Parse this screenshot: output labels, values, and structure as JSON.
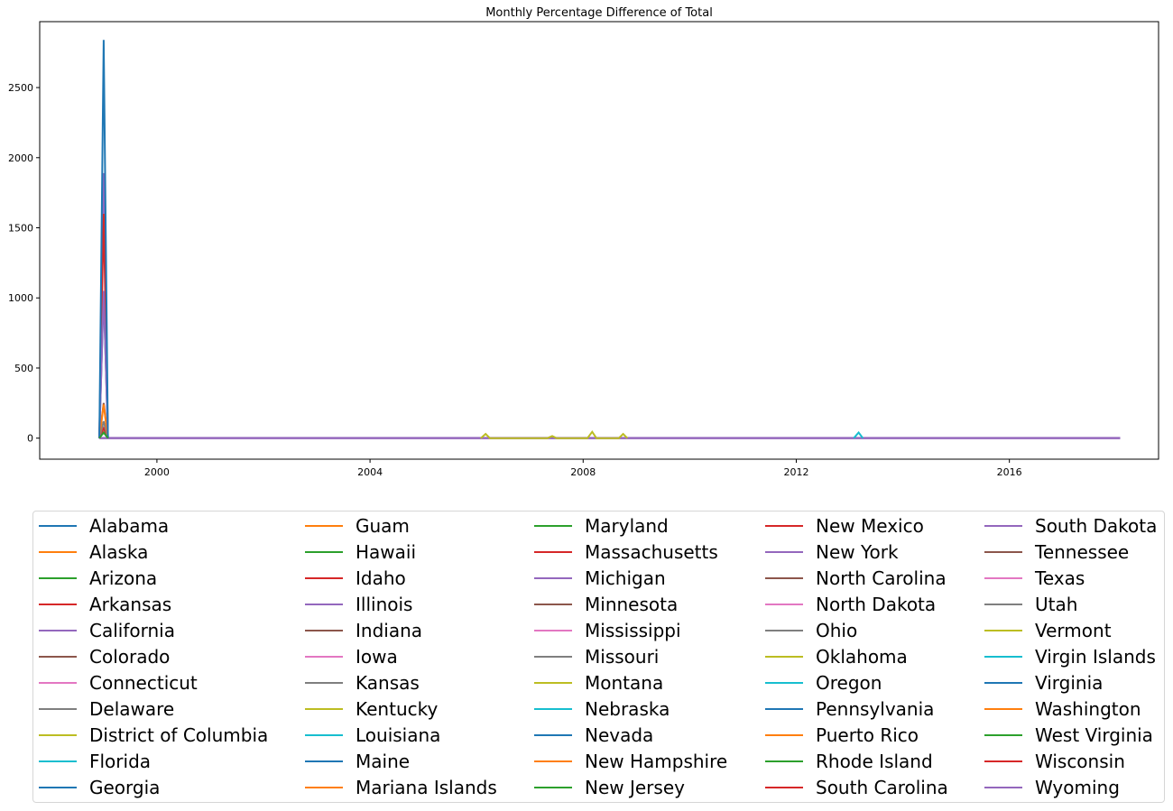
{
  "chart_data": {
    "type": "line",
    "title": "Monthly Percentage Difference of Total",
    "xlabel": "",
    "ylabel": "",
    "xlim": [
      1997.8,
      2018.8
    ],
    "ylim": [
      -150,
      2970
    ],
    "x_ticks": [
      "2000",
      "2004",
      "2008",
      "2012",
      "2016"
    ],
    "y_ticks": [
      "0",
      "500",
      "1000",
      "1500",
      "2000",
      "2500"
    ],
    "grid": false,
    "legend_location": "bottom",
    "legend_columns": 5,
    "baseline": {
      "x_start": 1998.92,
      "x_end": 2018.08,
      "y": 0
    },
    "series": [
      {
        "name": "Alabama",
        "color": "#1f77b4",
        "points": []
      },
      {
        "name": "Alaska",
        "color": "#ff7f0e",
        "points": []
      },
      {
        "name": "Arizona",
        "color": "#2ca02c",
        "points": []
      },
      {
        "name": "Arkansas",
        "color": "#d62728",
        "points": [
          [
            1998.92,
            0
          ],
          [
            1999.0,
            70
          ],
          [
            1999.08,
            0
          ]
        ]
      },
      {
        "name": "California",
        "color": "#9467bd",
        "points": [
          [
            1998.92,
            0
          ],
          [
            1999.0,
            1890
          ],
          [
            1999.08,
            0
          ]
        ]
      },
      {
        "name": "Colorado",
        "color": "#8c564b",
        "points": [
          [
            1998.92,
            0
          ],
          [
            1999.0,
            250
          ],
          [
            1999.08,
            0
          ]
        ]
      },
      {
        "name": "Connecticut",
        "color": "#e377c2",
        "points": []
      },
      {
        "name": "Delaware",
        "color": "#7f7f7f",
        "points": [
          [
            1998.92,
            0
          ],
          [
            1999.0,
            120
          ],
          [
            1999.08,
            0
          ]
        ]
      },
      {
        "name": "District of Columbia",
        "color": "#bcbd22",
        "points": []
      },
      {
        "name": "Florida",
        "color": "#17becf",
        "points": []
      },
      {
        "name": "Georgia",
        "color": "#1f77b4",
        "points": [
          [
            1998.92,
            0
          ],
          [
            1999.0,
            1050
          ],
          [
            1999.08,
            0
          ]
        ]
      },
      {
        "name": "Guam",
        "color": "#ff7f0e",
        "points": [
          [
            1998.92,
            0
          ],
          [
            1999.0,
            240
          ],
          [
            1999.08,
            0
          ]
        ]
      },
      {
        "name": "Hawaii",
        "color": "#2ca02c",
        "points": []
      },
      {
        "name": "Idaho",
        "color": "#d62728",
        "points": [
          [
            1998.92,
            0
          ],
          [
            1999.0,
            1600
          ],
          [
            1999.08,
            0
          ]
        ]
      },
      {
        "name": "Illinois",
        "color": "#9467bd",
        "points": [
          [
            1998.92,
            0
          ],
          [
            1999.0,
            1050
          ],
          [
            1999.08,
            0
          ]
        ]
      },
      {
        "name": "Indiana",
        "color": "#8c564b",
        "points": []
      },
      {
        "name": "Iowa",
        "color": "#e377c2",
        "points": []
      },
      {
        "name": "Kansas",
        "color": "#7f7f7f",
        "points": []
      },
      {
        "name": "Kentucky",
        "color": "#bcbd22",
        "points": [
          [
            2006.08,
            0
          ],
          [
            2006.17,
            30
          ],
          [
            2006.25,
            0
          ],
          [
            2007.33,
            0
          ],
          [
            2007.42,
            15
          ],
          [
            2007.5,
            0
          ],
          [
            2008.08,
            0
          ],
          [
            2008.17,
            45
          ],
          [
            2008.25,
            0
          ],
          [
            2008.67,
            0
          ],
          [
            2008.75,
            30
          ],
          [
            2008.83,
            0
          ]
        ]
      },
      {
        "name": "Louisiana",
        "color": "#17becf",
        "points": [
          [
            2013.08,
            0
          ],
          [
            2013.17,
            40
          ],
          [
            2013.25,
            0
          ]
        ]
      },
      {
        "name": "Maine",
        "color": "#1f77b4",
        "points": [
          [
            1998.92,
            0
          ],
          [
            1999.0,
            2840
          ],
          [
            1999.08,
            0
          ]
        ]
      },
      {
        "name": "Mariana Islands",
        "color": "#ff7f0e",
        "points": []
      },
      {
        "name": "Maryland",
        "color": "#2ca02c",
        "points": [
          [
            1998.92,
            0
          ],
          [
            1999.0,
            40
          ],
          [
            1999.08,
            0
          ]
        ]
      },
      {
        "name": "Massachusetts",
        "color": "#d62728",
        "points": []
      },
      {
        "name": "Michigan",
        "color": "#9467bd",
        "points": []
      },
      {
        "name": "Minnesota",
        "color": "#8c564b",
        "points": []
      },
      {
        "name": "Mississippi",
        "color": "#e377c2",
        "points": []
      },
      {
        "name": "Missouri",
        "color": "#7f7f7f",
        "points": []
      },
      {
        "name": "Montana",
        "color": "#bcbd22",
        "points": []
      },
      {
        "name": "Nebraska",
        "color": "#17becf",
        "points": []
      },
      {
        "name": "Nevada",
        "color": "#1f77b4",
        "points": []
      },
      {
        "name": "New Hampshire",
        "color": "#ff7f0e",
        "points": []
      },
      {
        "name": "New Jersey",
        "color": "#2ca02c",
        "points": []
      },
      {
        "name": "New Mexico",
        "color": "#d62728",
        "points": []
      },
      {
        "name": "New York",
        "color": "#9467bd",
        "points": []
      },
      {
        "name": "North Carolina",
        "color": "#8c564b",
        "points": []
      },
      {
        "name": "North Dakota",
        "color": "#e377c2",
        "points": []
      },
      {
        "name": "Ohio",
        "color": "#7f7f7f",
        "points": []
      },
      {
        "name": "Oklahoma",
        "color": "#bcbd22",
        "points": []
      },
      {
        "name": "Oregon",
        "color": "#17becf",
        "points": []
      },
      {
        "name": "Pennsylvania",
        "color": "#1f77b4",
        "points": []
      },
      {
        "name": "Puerto Rico",
        "color": "#ff7f0e",
        "points": []
      },
      {
        "name": "Rhode Island",
        "color": "#2ca02c",
        "points": []
      },
      {
        "name": "South Carolina",
        "color": "#d62728",
        "points": []
      },
      {
        "name": "South Dakota",
        "color": "#9467bd",
        "points": []
      },
      {
        "name": "Tennessee",
        "color": "#8c564b",
        "points": []
      },
      {
        "name": "Texas",
        "color": "#e377c2",
        "points": []
      },
      {
        "name": "Utah",
        "color": "#7f7f7f",
        "points": []
      },
      {
        "name": "Vermont",
        "color": "#bcbd22",
        "points": []
      },
      {
        "name": "Virgin Islands",
        "color": "#17becf",
        "points": []
      },
      {
        "name": "Virginia",
        "color": "#1f77b4",
        "points": []
      },
      {
        "name": "Washington",
        "color": "#ff7f0e",
        "points": []
      },
      {
        "name": "West Virginia",
        "color": "#2ca02c",
        "points": []
      },
      {
        "name": "Wisconsin",
        "color": "#d62728",
        "points": []
      },
      {
        "name": "Wyoming",
        "color": "#9467bd",
        "points": []
      }
    ]
  }
}
